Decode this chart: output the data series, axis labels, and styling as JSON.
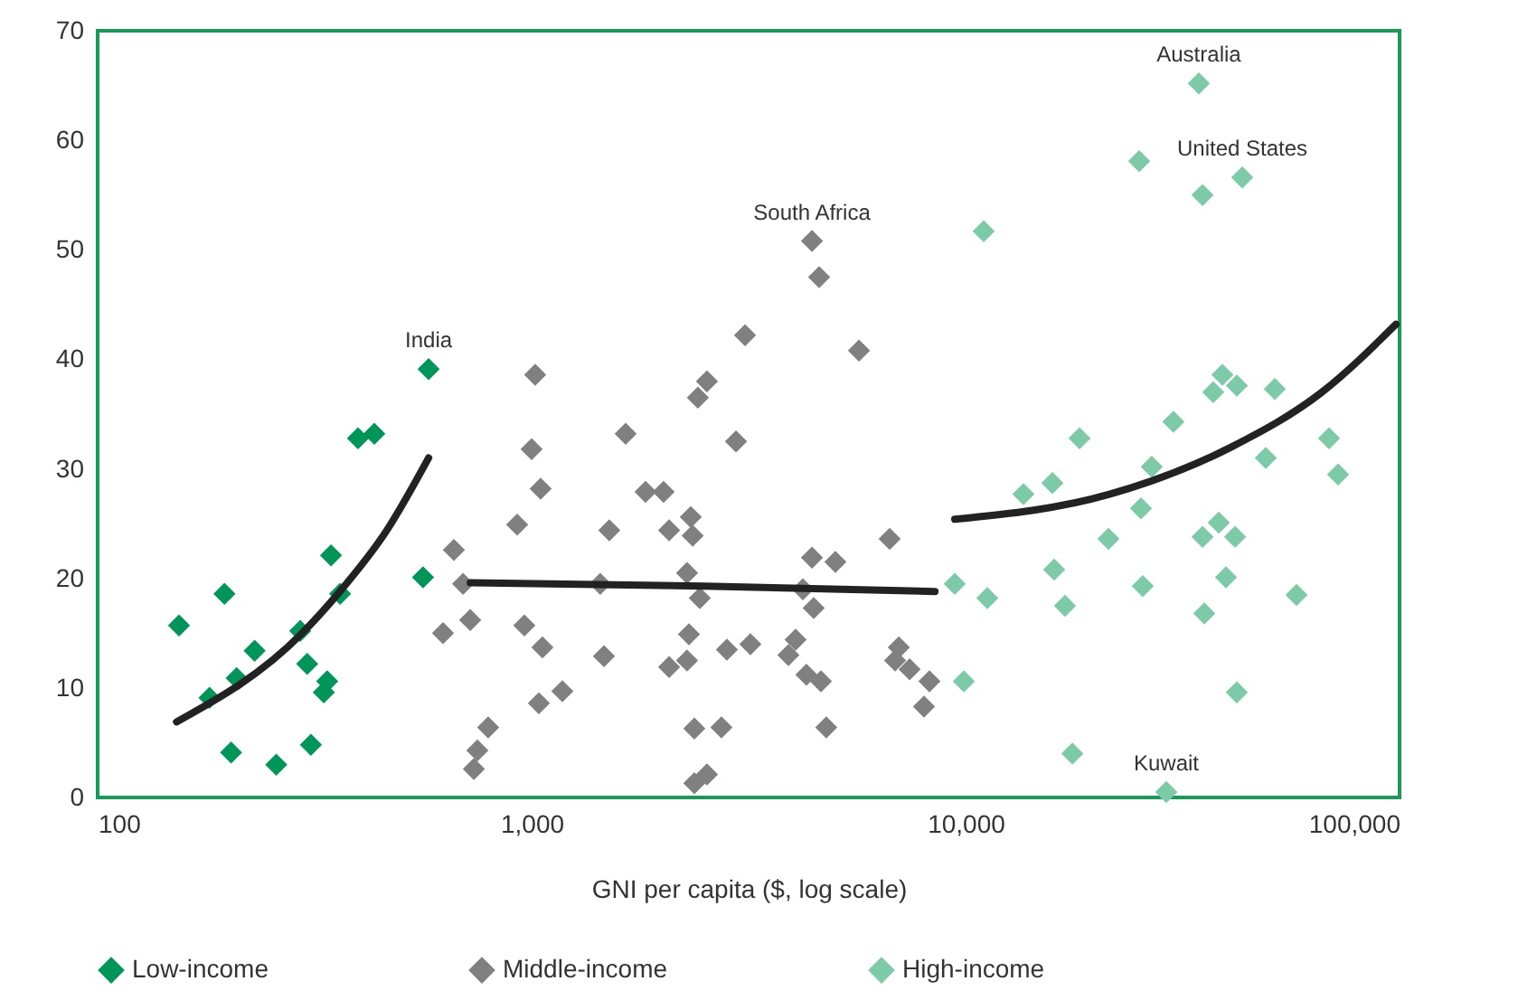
{
  "chart_data": {
    "type": "scatter",
    "xlabel": "GNI per capita ($, log scale)",
    "log": "x",
    "xlim": [
      100,
      100000
    ],
    "xticks": [
      {
        "value": 100,
        "label": "100"
      },
      {
        "value": 1000,
        "label": "1,000"
      },
      {
        "value": 10000,
        "label": "10,000"
      },
      {
        "value": 100000,
        "label": "100,000"
      }
    ],
    "ylim": [
      0,
      70
    ],
    "yticks": [
      0,
      10,
      20,
      30,
      40,
      50,
      60,
      70
    ],
    "grid": false,
    "legend": "bottom",
    "marker": "diamond",
    "series": [
      {
        "name": "Low-income",
        "color": "#00965a",
        "x": [
          154,
          181,
          196,
          203,
          209,
          230,
          258,
          293,
          304,
          310,
          332,
          338,
          345,
          362,
          398,
          434,
          562,
          579
        ],
        "values": [
          15.7,
          9.1,
          18.6,
          4.1,
          10.9,
          13.4,
          3.0,
          15.2,
          12.2,
          4.8,
          9.6,
          10.6,
          22.1,
          18.6,
          32.8,
          33.2,
          20.1,
          39.1
        ]
      },
      {
        "name": "Middle-income",
        "color": "#808080",
        "x": [
          4426,
          4597,
          3103,
          5679,
          1019,
          2535,
          2416,
          1000,
          1647,
          2958,
          1049,
          1830,
          2014,
          926,
          1510,
          2327,
          2074,
          2350,
          662,
          6683,
          4426,
          5012,
          695,
          1439,
          2281,
          2441,
          4217,
          4467,
          625,
          722,
          962,
          1059,
          1468,
          2304,
          2281,
          2074,
          2818,
          3192,
          4057,
          3906,
          4297,
          4642,
          7017,
          6879,
          7431,
          8254,
          8018,
          1039,
          1177,
          794,
          750,
          736,
          2371,
          2738,
          4775,
          2371,
          2535
        ],
        "values": [
          50.8,
          47.5,
          42.2,
          40.8,
          38.6,
          38.0,
          36.5,
          31.8,
          33.2,
          32.5,
          28.2,
          27.9,
          27.9,
          24.9,
          24.4,
          25.6,
          24.4,
          23.9,
          22.6,
          23.6,
          21.9,
          21.5,
          19.5,
          19.5,
          20.5,
          18.2,
          19.0,
          17.3,
          15.0,
          16.2,
          15.7,
          13.7,
          12.9,
          14.9,
          12.5,
          11.9,
          13.5,
          14.0,
          14.4,
          13.0,
          11.2,
          10.6,
          13.7,
          12.5,
          11.7,
          10.6,
          8.3,
          8.6,
          9.7,
          6.4,
          4.3,
          2.6,
          6.3,
          6.4,
          6.4,
          1.3,
          2.1
        ]
      },
      {
        "name": "High-income",
        "color": "#7dcaa8",
        "x": [
          34467,
          25119,
          43401,
          35156,
          11007,
          39063,
          37209,
          42170,
          51582,
          30125,
          18302,
          68785,
          26854,
          49170,
          72160,
          15849,
          13594,
          25357,
          38312,
          41783,
          35156,
          21340,
          15996,
          25595,
          39811,
          9441,
          11220,
          16943,
          57876,
          35481,
          9908,
          42170,
          17625,
          29007
        ],
        "values": [
          65.2,
          58.1,
          56.6,
          55.0,
          51.7,
          38.6,
          37.0,
          37.6,
          37.3,
          34.3,
          32.8,
          32.8,
          30.2,
          31.0,
          29.5,
          28.7,
          27.7,
          26.4,
          25.1,
          23.8,
          23.8,
          23.6,
          20.8,
          19.3,
          20.1,
          19.5,
          18.2,
          17.5,
          18.5,
          16.8,
          10.6,
          9.6,
          4.0,
          0.5
        ]
      },
      {
        "type": "line",
        "marker": "none",
        "color": "#222222",
        "x": [
          152,
          296,
          358,
          464,
          579
        ],
        "values": [
          6.9,
          15.0,
          18.6,
          24.4,
          31.0
        ]
      },
      {
        "type": "line",
        "marker": "none",
        "color": "#222222",
        "x": [
          722,
          2500,
          8500
        ],
        "values": [
          19.6,
          19.3,
          18.8
        ]
      },
      {
        "type": "line",
        "marker": "none",
        "color": "#222222",
        "x": [
          9441,
          21544,
          40973,
          66222,
          98100
        ],
        "values": [
          25.4,
          27.7,
          32.0,
          37.0,
          43.2
        ]
      }
    ],
    "annotations": [
      {
        "text": "India",
        "x": 579,
        "y": 39.1
      },
      {
        "text": "South Africa",
        "x": 4426,
        "y": 50.8
      },
      {
        "text": "Australia",
        "x": 34467,
        "y": 65.2
      },
      {
        "text": "United States",
        "x": 43401,
        "y": 56.6
      },
      {
        "text": "Kuwait",
        "x": 29007,
        "y": 0.5
      }
    ]
  }
}
